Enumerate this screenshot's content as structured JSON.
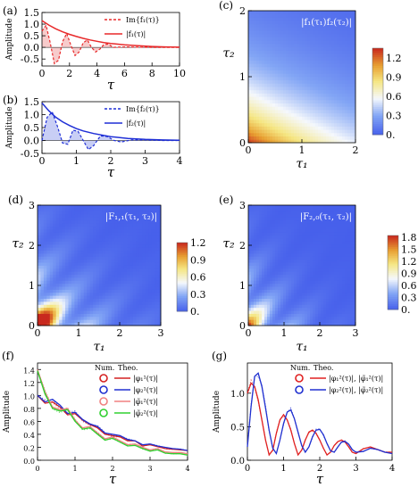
{
  "chart_data": [
    {
      "id": "a",
      "type": "line",
      "panel_label": "(a)",
      "ylabel": "Amplitude",
      "xlabel": "τ",
      "xlim": [
        0,
        10
      ],
      "ylim": [
        -0.8,
        1.5
      ],
      "xticks": [
        0,
        2,
        4,
        6,
        8,
        10
      ],
      "yticks": [
        -0.5,
        0.0,
        0.5,
        1.0,
        1.5
      ],
      "ytick_labels": [
        "-0.5",
        "0.0",
        "0.5",
        "1.0",
        "1.5"
      ],
      "color": "#e8292a",
      "fill": "#f4b9b9",
      "series": [
        {
          "name": "Im{f₁(τ)}",
          "style": "dashed",
          "x": [
            0,
            0.3,
            0.6,
            0.9,
            1.2,
            1.5,
            1.8,
            2.1,
            2.4,
            2.7,
            3.0,
            3.3,
            3.6,
            3.9,
            4.2,
            4.5,
            4.8,
            5.2,
            6,
            7,
            8,
            9,
            10
          ],
          "y": [
            0.7,
            0.95,
            0.2,
            -0.7,
            -0.55,
            0.25,
            0.6,
            0.1,
            -0.35,
            -0.2,
            0.2,
            0.32,
            0.0,
            -0.2,
            -0.08,
            0.12,
            0.14,
            0.0,
            0.02,
            0.01,
            0.0,
            0.0,
            0.0
          ]
        },
        {
          "name": "|f₁(τ)|",
          "style": "solid",
          "x": [
            0,
            0.5,
            1,
            1.5,
            2,
            2.5,
            3,
            3.5,
            4,
            4.5,
            5,
            6,
            7,
            8,
            9,
            10
          ],
          "y": [
            1.15,
            0.96,
            0.8,
            0.67,
            0.56,
            0.47,
            0.39,
            0.32,
            0.26,
            0.21,
            0.17,
            0.11,
            0.07,
            0.04,
            0.02,
            0.01
          ]
        }
      ]
    },
    {
      "id": "b",
      "type": "line",
      "panel_label": "(b)",
      "ylabel": "Amplitude",
      "xlabel": "τ",
      "xlim": [
        0,
        4
      ],
      "ylim": [
        -0.5,
        1.5
      ],
      "xticks": [
        0,
        1,
        2,
        3,
        4
      ],
      "yticks": [
        -0.5,
        0.0,
        0.5,
        1.0,
        1.5
      ],
      "ytick_labels": [
        "-0.5",
        "0.0",
        "0.5",
        "1.0",
        "1.5"
      ],
      "color": "#1f2fd6",
      "fill": "#b5bdf2",
      "series": [
        {
          "name": "Im{f₂(τ)}",
          "style": "dashed",
          "x": [
            0,
            0.15,
            0.3,
            0.45,
            0.6,
            0.75,
            0.9,
            1.05,
            1.2,
            1.35,
            1.5,
            1.7,
            1.9,
            2.1,
            2.3,
            2.6,
            3,
            3.5,
            4
          ],
          "y": [
            0.0,
            0.9,
            1.1,
            0.55,
            -0.1,
            -0.15,
            0.4,
            0.35,
            0.0,
            -0.35,
            -0.2,
            0.18,
            0.15,
            0.0,
            -0.06,
            0.02,
            0.02,
            0.0,
            0.0
          ]
        },
        {
          "name": "|f₂(τ)|",
          "style": "solid",
          "x": [
            0,
            0.2,
            0.4,
            0.6,
            0.8,
            1.0,
            1.2,
            1.5,
            2,
            2.5,
            3,
            3.5,
            4
          ],
          "y": [
            1.45,
            1.15,
            0.9,
            0.72,
            0.58,
            0.46,
            0.37,
            0.27,
            0.15,
            0.08,
            0.04,
            0.02,
            0.01
          ]
        }
      ]
    },
    {
      "id": "c",
      "type": "heatmap",
      "panel_label": "(c)",
      "title": "|f₁(τ₁)f₂(τ₂)|",
      "xlabel": "τ₁",
      "ylabel": "τ₂",
      "xlim": [
        0,
        2
      ],
      "ylim": [
        0,
        2
      ],
      "xticks": [
        0,
        1,
        2
      ],
      "yticks": [
        0,
        1,
        2
      ],
      "colorbar": {
        "min": 0,
        "max": 1.35,
        "ticks": [
          1.2,
          0.9,
          0.6,
          0.3,
          0
        ],
        "tick_labels": [
          "1.2",
          "0.9",
          "0.6",
          "0.3",
          "0."
        ]
      }
    },
    {
      "id": "d",
      "type": "heatmap",
      "panel_label": "(d)",
      "title": "|F₁,₁(τ₁, τ₂)|",
      "xlabel": "τ₁",
      "ylabel": "τ₂",
      "xlim": [
        0,
        3
      ],
      "ylim": [
        0,
        3
      ],
      "xticks": [
        0,
        1,
        2,
        3
      ],
      "yticks": [
        0,
        1,
        2,
        3
      ],
      "colorbar": {
        "min": 0,
        "max": 1.2,
        "ticks": [
          1.2,
          0.9,
          0.6,
          0.3,
          0
        ],
        "tick_labels": [
          "1.2",
          "0.9",
          "0.6",
          "0.3",
          "0."
        ]
      }
    },
    {
      "id": "e",
      "type": "heatmap",
      "panel_label": "(e)",
      "title": "|F₂,₀(τ₁, τ₂)|",
      "xlabel": "τ₁",
      "ylabel": "τ₂",
      "xlim": [
        0,
        3
      ],
      "ylim": [
        0,
        3
      ],
      "xticks": [
        0,
        1,
        2,
        3
      ],
      "yticks": [
        0,
        1,
        2,
        3
      ],
      "colorbar": {
        "min": 0,
        "max": 1.85,
        "ticks": [
          1.8,
          1.5,
          1.2,
          0.9,
          0.6,
          0.3,
          0
        ],
        "tick_labels": [
          "1.8",
          "1.5",
          "1.2",
          "0.9",
          "0.6",
          "0.3",
          "0."
        ]
      }
    },
    {
      "id": "f",
      "type": "line",
      "panel_label": "(f)",
      "ylabel": "Amplitude",
      "xlabel": "τ",
      "xlim": [
        0,
        4
      ],
      "ylim": [
        0,
        1.5
      ],
      "xticks": [
        0,
        1,
        2,
        3,
        4
      ],
      "yticks": [
        0.0,
        0.2,
        0.4,
        0.6,
        0.8,
        1.0,
        1.2,
        1.4
      ],
      "ytick_labels": [
        "0.0",
        "0.2",
        "0.4",
        "0.6",
        "0.8",
        "1.0",
        "1.2",
        "1.4"
      ],
      "legend_header": [
        "Num.",
        "Theo."
      ],
      "series": [
        {
          "name": "|φ₁¹(τ)|",
          "color": "#d42020",
          "x": [
            0,
            0.2,
            0.4,
            0.6,
            0.8,
            1.0,
            1.2,
            1.4,
            1.6,
            1.8,
            2.0,
            2.2,
            2.4,
            2.6,
            2.8,
            3.0,
            3.2,
            3.4,
            3.6,
            3.8,
            4.0
          ],
          "y": [
            1.0,
            0.88,
            0.9,
            0.82,
            0.7,
            0.72,
            0.62,
            0.55,
            0.5,
            0.4,
            0.38,
            0.36,
            0.3,
            0.3,
            0.22,
            0.24,
            0.21,
            0.18,
            0.17,
            0.16,
            0.15
          ]
        },
        {
          "name": "|φ₂¹(τ)|",
          "color": "#2030d0",
          "x": [
            0,
            0.2,
            0.4,
            0.6,
            0.8,
            1.0,
            1.2,
            1.4,
            1.6,
            1.8,
            2.0,
            2.2,
            2.4,
            2.6,
            2.8,
            3.0,
            3.2,
            3.4,
            3.6,
            3.8,
            4.0
          ],
          "y": [
            1.0,
            0.9,
            0.94,
            0.85,
            0.72,
            0.74,
            0.63,
            0.56,
            0.52,
            0.42,
            0.4,
            0.38,
            0.32,
            0.3,
            0.24,
            0.25,
            0.22,
            0.2,
            0.18,
            0.17,
            0.15
          ]
        },
        {
          "name": "|φ̃₁²(τ)|",
          "color": "#f08080",
          "x": [
            0,
            0.2,
            0.4,
            0.6,
            0.8,
            1.0,
            1.2,
            1.4,
            1.6,
            1.8,
            2.0,
            2.2,
            2.4,
            2.6,
            2.8,
            3.0,
            3.2,
            3.4,
            3.6,
            3.8,
            4.0
          ],
          "y": [
            1.4,
            1.05,
            0.82,
            0.78,
            0.8,
            0.62,
            0.5,
            0.52,
            0.42,
            0.33,
            0.36,
            0.3,
            0.24,
            0.25,
            0.2,
            0.16,
            0.18,
            0.13,
            0.12,
            0.12,
            0.1
          ]
        },
        {
          "name": "|φ̃₂²(τ)|",
          "color": "#30d030",
          "x": [
            0,
            0.2,
            0.4,
            0.6,
            0.8,
            1.0,
            1.2,
            1.4,
            1.6,
            1.8,
            2.0,
            2.2,
            2.4,
            2.6,
            2.8,
            3.0,
            3.2,
            3.4,
            3.6,
            3.8,
            4.0
          ],
          "y": [
            1.38,
            1.02,
            0.8,
            0.76,
            0.78,
            0.6,
            0.48,
            0.5,
            0.4,
            0.31,
            0.34,
            0.28,
            0.22,
            0.23,
            0.18,
            0.14,
            0.16,
            0.11,
            0.1,
            0.1,
            0.08
          ]
        }
      ]
    },
    {
      "id": "g",
      "type": "line",
      "panel_label": "(g)",
      "ylabel": "Amplitude",
      "xlabel": "τ",
      "xlim": [
        0,
        4
      ],
      "ylim": [
        0,
        1.45
      ],
      "xticks": [
        0,
        1,
        2,
        3,
        4
      ],
      "yticks": [
        0.0,
        0.5,
        1.0
      ],
      "ytick_labels": [
        "0.0",
        "0.5",
        "1.0"
      ],
      "legend_header": [
        "Num.",
        "Theo."
      ],
      "series": [
        {
          "name": "|φ₁²(τ)|, |φ̃₁²(τ)|",
          "color": "#e02020",
          "x": [
            0,
            0.1,
            0.2,
            0.3,
            0.4,
            0.5,
            0.6,
            0.7,
            0.8,
            0.9,
            1.0,
            1.1,
            1.2,
            1.3,
            1.4,
            1.5,
            1.6,
            1.7,
            1.8,
            1.9,
            2.0,
            2.1,
            2.2,
            2.3,
            2.4,
            2.5,
            2.6,
            2.7,
            2.8,
            2.9,
            3.0,
            3.2,
            3.4,
            3.6,
            3.8,
            4.0
          ],
          "y": [
            1.0,
            1.15,
            1.1,
            0.9,
            0.6,
            0.3,
            0.08,
            0.15,
            0.4,
            0.6,
            0.68,
            0.6,
            0.45,
            0.25,
            0.08,
            0.15,
            0.3,
            0.42,
            0.45,
            0.4,
            0.3,
            0.18,
            0.08,
            0.12,
            0.22,
            0.28,
            0.3,
            0.27,
            0.2,
            0.12,
            0.1,
            0.17,
            0.2,
            0.16,
            0.12,
            0.12
          ]
        },
        {
          "name": "|φ₂²(τ)|, |φ̃₂²(τ)|",
          "color": "#2030d0",
          "x": [
            0,
            0.1,
            0.2,
            0.3,
            0.4,
            0.5,
            0.6,
            0.7,
            0.8,
            0.9,
            1.0,
            1.1,
            1.2,
            1.3,
            1.4,
            1.5,
            1.6,
            1.7,
            1.8,
            1.9,
            2.0,
            2.1,
            2.2,
            2.3,
            2.4,
            2.5,
            2.6,
            2.7,
            2.8,
            2.9,
            3.0,
            3.2,
            3.4,
            3.6,
            3.8,
            4.0
          ],
          "y": [
            0.2,
            0.8,
            1.25,
            1.3,
            1.1,
            0.78,
            0.45,
            0.18,
            0.1,
            0.3,
            0.55,
            0.72,
            0.75,
            0.62,
            0.42,
            0.22,
            0.12,
            0.2,
            0.35,
            0.45,
            0.46,
            0.38,
            0.25,
            0.14,
            0.12,
            0.2,
            0.27,
            0.28,
            0.24,
            0.16,
            0.12,
            0.13,
            0.18,
            0.16,
            0.12,
            0.1
          ]
        }
      ]
    }
  ]
}
